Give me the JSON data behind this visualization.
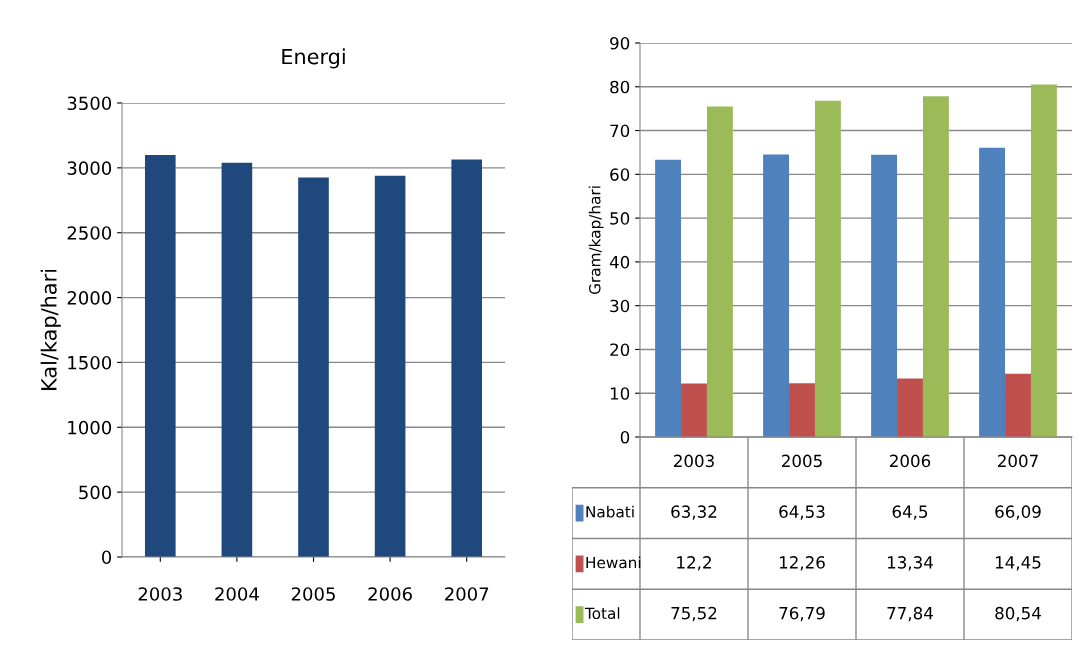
{
  "chart_data": [
    {
      "type": "bar",
      "title": "Energi",
      "ylabel": "Kal/kap/hari",
      "categories": [
        "2003",
        "2004",
        "2005",
        "2006",
        "2007"
      ],
      "values": [
        3100,
        3040,
        2925,
        2940,
        3065
      ],
      "color": "#1f497d",
      "ylim": [
        0,
        3500
      ],
      "yticks": [
        0,
        500,
        1000,
        1500,
        2000,
        2500,
        3000,
        3500
      ],
      "grid": "y"
    },
    {
      "type": "bar",
      "ylabel": "Gram/kap/hari",
      "categories": [
        "2003",
        "2005",
        "2006",
        "2007"
      ],
      "ylim": [
        0,
        90
      ],
      "yticks": [
        0,
        10,
        20,
        30,
        40,
        50,
        60,
        70,
        80,
        90
      ],
      "grid": "y",
      "legend": "bottom",
      "series": [
        {
          "name": "Nabati",
          "color": "#4f81bd",
          "values": [
            63.32,
            64.53,
            64.5,
            66.09
          ],
          "value_labels": [
            "63,32",
            "64,53",
            "64,5",
            "66,09"
          ]
        },
        {
          "name": "Hewani",
          "color": "#c0504d",
          "values": [
            12.2,
            12.26,
            13.34,
            14.45
          ],
          "value_labels": [
            "12,2",
            "12,26",
            "13,34",
            "14,45"
          ]
        },
        {
          "name": "Total",
          "color": "#9bbb59",
          "values": [
            75.52,
            76.79,
            77.84,
            80.54
          ],
          "value_labels": [
            "75,52",
            "76,79",
            "77,84",
            "80,54"
          ]
        }
      ]
    }
  ]
}
